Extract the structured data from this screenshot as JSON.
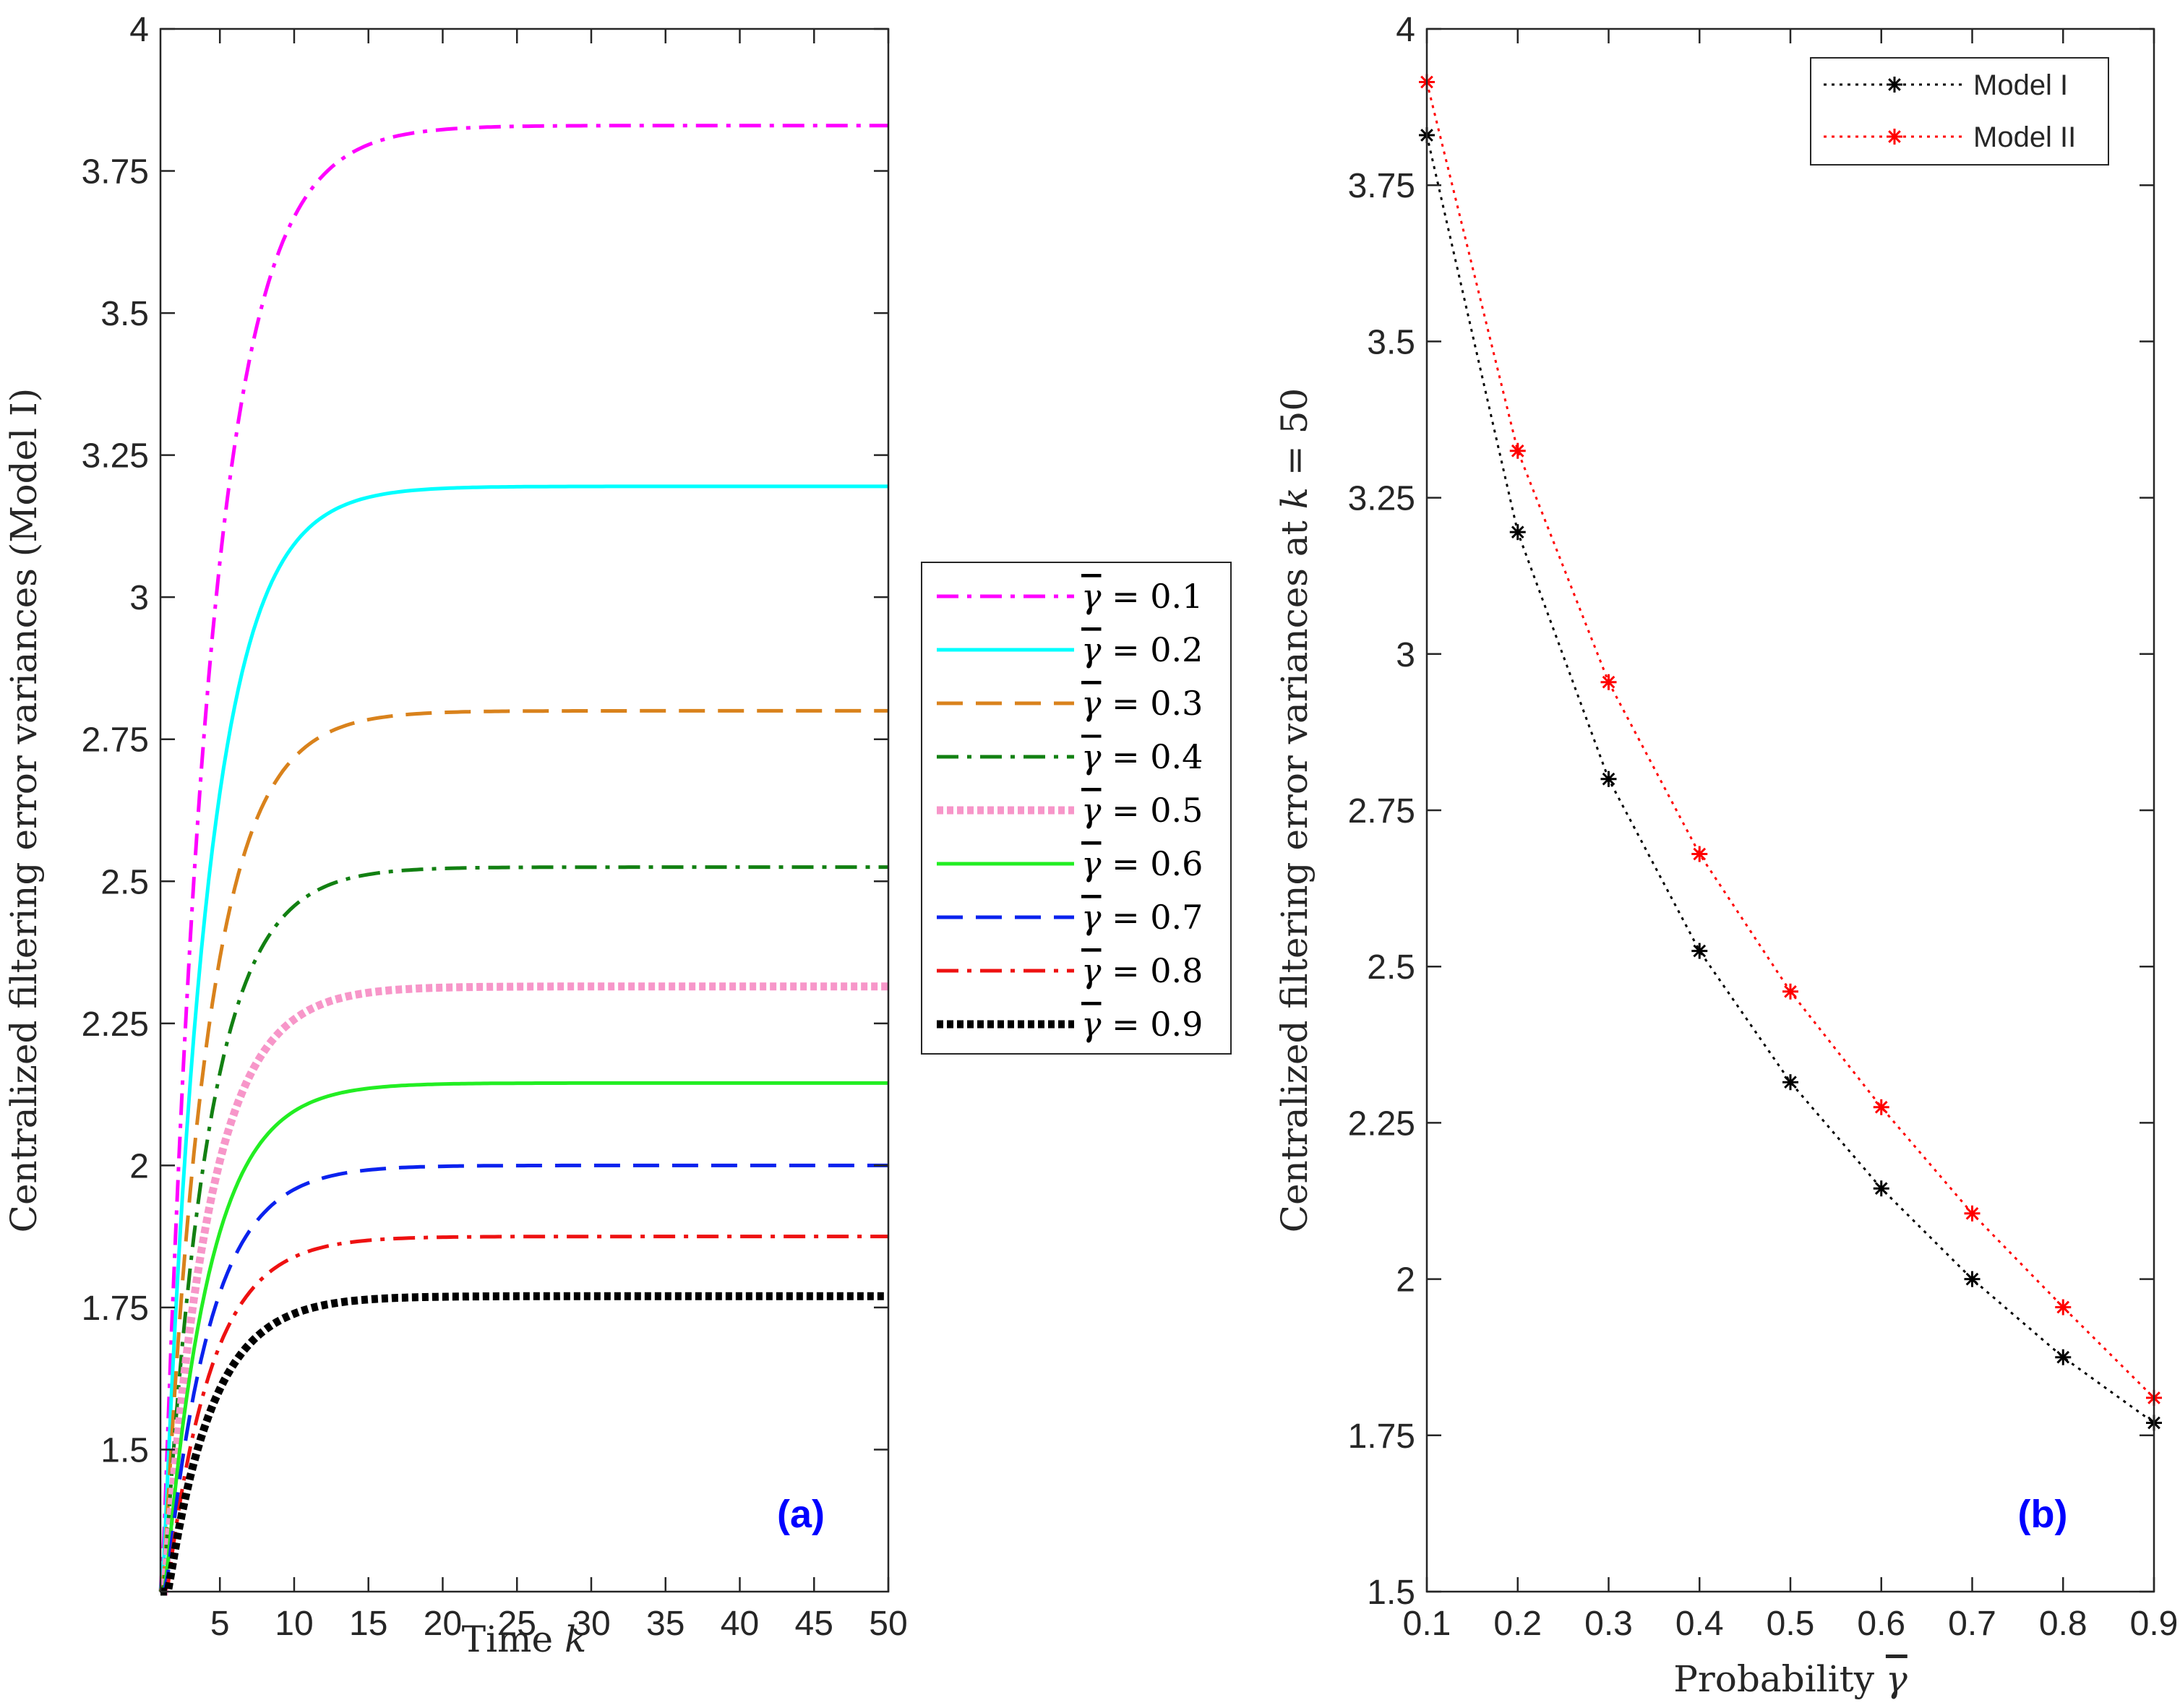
{
  "chart_data": [
    {
      "type": "line",
      "panel_label": "(a)",
      "xlabel": "Time k",
      "ylabel": "Centralized filtering error variances (Model I)",
      "xlim": [
        1,
        50
      ],
      "ylim": [
        1.25,
        4
      ],
      "xticks": [
        5,
        10,
        15,
        20,
        25,
        30,
        35,
        40,
        45,
        50
      ],
      "yticks": [
        1.5,
        1.75,
        2,
        2.25,
        2.5,
        2.75,
        3,
        3.25,
        3.5,
        3.75,
        4
      ],
      "ytick_labels": [
        "1.5",
        "1.75",
        "2",
        "2.25",
        "2.5",
        "2.75",
        "3",
        "3.25",
        "3.5",
        "3.75",
        "4"
      ],
      "legend_placement": "outside-right",
      "series": [
        {
          "name": "γ̄ = 0.1",
          "legend_value": "0.1",
          "final": 3.83,
          "initial": 1.15,
          "tau": 3.2,
          "color": "#ff00ff",
          "style": "dashdot",
          "width": 5
        },
        {
          "name": "γ̄ = 0.2",
          "legend_value": "0.2",
          "final": 3.195,
          "initial": 1.15,
          "tau": 3.0,
          "color": "#00ffff",
          "style": "solid",
          "width": 5
        },
        {
          "name": "γ̄ = 0.3",
          "legend_value": "0.3",
          "final": 2.8,
          "initial": 1.15,
          "tau": 3.0,
          "color": "#d9821c",
          "style": "dashed",
          "width": 5
        },
        {
          "name": "γ̄ = 0.4",
          "legend_value": "0.4",
          "final": 2.525,
          "initial": 1.15,
          "tau": 3.0,
          "color": "#128012",
          "style": "dashdot",
          "width": 5
        },
        {
          "name": "γ̄ = 0.5",
          "legend_value": "0.5",
          "final": 2.315,
          "initial": 1.15,
          "tau": 3.0,
          "color": "#f796c9",
          "style": "dotted",
          "width": 11
        },
        {
          "name": "γ̄ = 0.6",
          "legend_value": "0.6",
          "final": 2.145,
          "initial": 1.15,
          "tau": 3.0,
          "color": "#22ee22",
          "style": "solid",
          "width": 5
        },
        {
          "name": "γ̄ = 0.7",
          "legend_value": "0.7",
          "final": 2.0,
          "initial": 1.15,
          "tau": 3.0,
          "color": "#0a22ee",
          "style": "dashed",
          "width": 5
        },
        {
          "name": "γ̄ = 0.8",
          "legend_value": "0.8",
          "final": 1.875,
          "initial": 1.15,
          "tau": 3.0,
          "color": "#ee1111",
          "style": "dashdot",
          "width": 5
        },
        {
          "name": "γ̄ = 0.9",
          "legend_value": "0.9",
          "final": 1.77,
          "initial": 1.15,
          "tau": 3.0,
          "color": "#000000",
          "style": "dotted",
          "width": 11
        }
      ]
    },
    {
      "type": "line",
      "panel_label": "(b)",
      "xlabel": "Probability γ̄",
      "ylabel": "Centralized filtering error variances at k = 50",
      "xlim": [
        0.1,
        0.9
      ],
      "ylim": [
        1.5,
        4
      ],
      "xticks": [
        0.1,
        0.2,
        0.3,
        0.4,
        0.5,
        0.6,
        0.7,
        0.8,
        0.9
      ],
      "xtick_labels": [
        "0.1",
        "0.2",
        "0.3",
        "0.4",
        "0.5",
        "0.6",
        "0.7",
        "0.8",
        "0.9"
      ],
      "yticks": [
        1.5,
        1.75,
        2,
        2.25,
        2.5,
        2.75,
        3,
        3.25,
        3.5,
        3.75,
        4
      ],
      "ytick_labels": [
        "1.5",
        "1.75",
        "2",
        "2.25",
        "2.5",
        "2.75",
        "3",
        "3.25",
        "3.5",
        "3.75",
        "4"
      ],
      "legend_placement": "top-right",
      "x": [
        0.1,
        0.2,
        0.3,
        0.4,
        0.5,
        0.6,
        0.7,
        0.8,
        0.9
      ],
      "series": [
        {
          "name": "Model I",
          "values": [
            3.83,
            3.195,
            2.8,
            2.525,
            2.315,
            2.145,
            2.0,
            1.875,
            1.77
          ],
          "color": "#000000"
        },
        {
          "name": "Model II",
          "values": [
            3.915,
            3.325,
            2.955,
            2.68,
            2.46,
            2.275,
            2.105,
            1.955,
            1.81
          ],
          "color": "#ff0000"
        }
      ]
    }
  ]
}
